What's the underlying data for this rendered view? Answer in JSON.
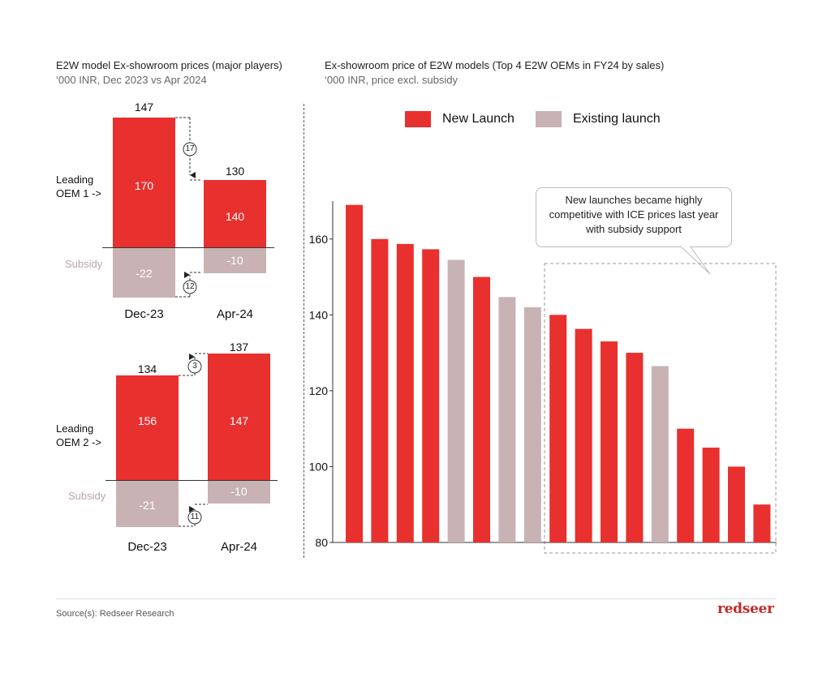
{
  "left_panel": {
    "title": "E2W model Ex-showroom prices (major players)",
    "subtitle": "‘000 INR, Dec 2023 vs Apr 2024",
    "subsidy_label": "Subsidy",
    "oem1": {
      "label_line1": "Leading",
      "label_line2": "OEM 1 ->",
      "dec": {
        "category": "Dec-23",
        "price": "170",
        "subsidy": "-22",
        "total": "147"
      },
      "apr": {
        "category": "Apr-24",
        "price": "140",
        "subsidy": "-10",
        "total": "130"
      },
      "top_diff": "17",
      "bottom_diff": "12"
    },
    "oem2": {
      "label_line1": "Leading",
      "label_line2": "OEM 2 ->",
      "dec": {
        "category": "Dec-23",
        "price": "156",
        "subsidy": "-21",
        "total": "134"
      },
      "apr": {
        "category": "Apr-24",
        "price": "147",
        "subsidy": "-10",
        "total": "137"
      },
      "top_diff": "3",
      "bottom_diff": "11"
    }
  },
  "right_panel": {
    "title": "Ex-showroom price of E2W models (Top 4 E2W OEMs in FY24 by sales)",
    "subtitle": "‘000 INR,  price excl. subsidy",
    "callout": "New launches became highly competitive with ICE prices last year with subsidy support"
  },
  "footer": {
    "source": "Source(s): Redseer Research",
    "brand": "redseer"
  },
  "colors": {
    "new_launch": "#e8302e",
    "existing_launch": "#c8b2b4"
  },
  "chart_data": [
    {
      "type": "bar",
      "stacked": true,
      "title": "E2W model Ex-showroom prices (major players)",
      "subtitle": "‘000 INR, Dec 2023 vs Apr 2024",
      "panel": "Leading OEM 1",
      "categories": [
        "Dec-23",
        "Apr-24"
      ],
      "series": [
        {
          "values": [
            170,
            140
          ]
        },
        {
          "name": "Subsidy",
          "values": [
            -22,
            -10
          ]
        }
      ],
      "totals": [
        147,
        130
      ],
      "annotations": [
        "17",
        "12"
      ]
    },
    {
      "type": "bar",
      "stacked": true,
      "panel": "Leading OEM 2",
      "categories": [
        "Dec-23",
        "Apr-24"
      ],
      "series": [
        {
          "values": [
            156,
            147
          ]
        },
        {
          "name": "Subsidy",
          "values": [
            -21,
            -10
          ]
        }
      ],
      "totals": [
        134,
        137
      ],
      "annotations": [
        "3",
        "11"
      ]
    },
    {
      "type": "bar",
      "title": "Ex-showroom price of E2W models (Top 4 E2W OEMs in FY24 by sales)",
      "subtitle": "‘000 INR,  price excl. subsidy",
      "legend": [
        {
          "name": "New Launch",
          "key": "new"
        },
        {
          "name": "Existing launch",
          "key": "existing"
        }
      ],
      "legend_position": "top",
      "ylim": [
        80,
        170
      ],
      "yticks": [
        80,
        100,
        120,
        140,
        160
      ],
      "grid": false,
      "values": [
        169,
        160,
        158.7,
        157.3,
        154.5,
        150,
        144.7,
        142,
        140,
        136.3,
        133,
        130,
        126.5,
        110,
        105,
        100,
        90
      ],
      "kinds": [
        "new",
        "new",
        "new",
        "new",
        "existing",
        "new",
        "existing",
        "existing",
        "new",
        "new",
        "new",
        "new",
        "existing",
        "new",
        "new",
        "new",
        "new"
      ]
    }
  ]
}
